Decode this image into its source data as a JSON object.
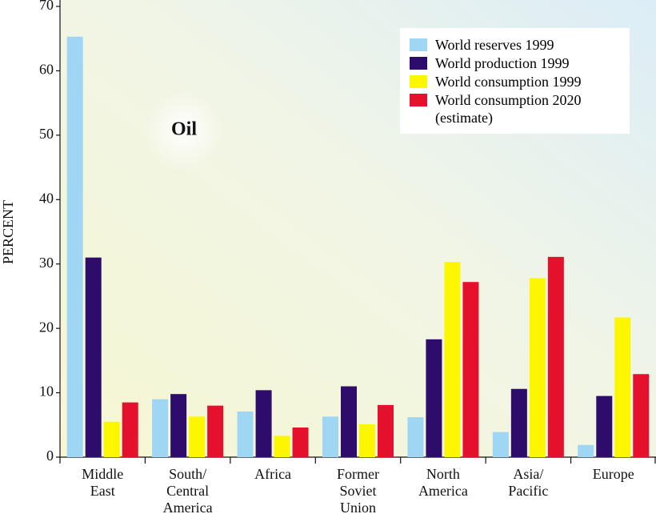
{
  "chart_data": {
    "type": "bar",
    "title": "Oil",
    "ylabel": "PERCENT",
    "categories": [
      "Middle East",
      "South/ Central America",
      "Africa",
      "Former Soviet Union",
      "North America",
      "Asia/ Pacific",
      "Europe"
    ],
    "series": [
      {
        "name": "World reserves 1999",
        "color": "#9fd6f4",
        "values": [
          65.3,
          9.0,
          7.1,
          6.3,
          6.2,
          3.9,
          1.9
        ]
      },
      {
        "name": "World production 1999",
        "color": "#2e0c6c",
        "values": [
          31.0,
          9.8,
          10.4,
          11.0,
          18.3,
          10.6,
          9.5
        ]
      },
      {
        "name": "World consumption 1999",
        "color": "#fcf600",
        "values": [
          5.5,
          6.3,
          3.3,
          5.1,
          30.3,
          27.8,
          21.7
        ]
      },
      {
        "name": "World consumption 2020 (estimate)",
        "color": "#e4102c",
        "values": [
          8.5,
          8.0,
          4.6,
          8.1,
          27.2,
          31.1,
          12.9
        ]
      }
    ],
    "ylim": [
      0,
      70
    ],
    "yticks": [
      0,
      10,
      20,
      30,
      40,
      50,
      60,
      70
    ],
    "legend": "upper right"
  }
}
